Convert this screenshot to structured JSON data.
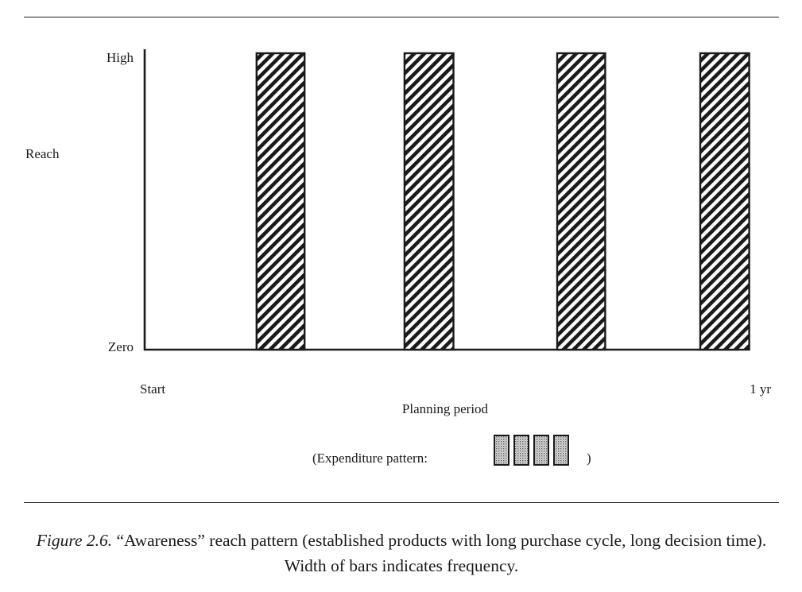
{
  "chart_data": {
    "type": "bar",
    "y_tick_labels": [
      "High",
      "Zero"
    ],
    "ylabel": "Reach",
    "x_tick_labels": [
      "Start",
      "1 yr"
    ],
    "xlabel": "Planning period",
    "x_range": [
      0,
      12
    ],
    "y_range": [
      0,
      1
    ],
    "bars": [
      {
        "x_start": 2.33,
        "x_end": 3.33,
        "value": 1.0
      },
      {
        "x_start": 5.41,
        "x_end": 6.43,
        "value": 1.0
      },
      {
        "x_start": 8.59,
        "x_end": 9.59,
        "value": 1.0
      },
      {
        "x_start": 11.57,
        "x_end": 12.59,
        "value": 1.0
      }
    ],
    "bar_pattern": "diagonal-hatch",
    "expenditure_pattern": {
      "label": "(Expenditure pattern:",
      "close": ")",
      "blocks": 4
    },
    "grid": false,
    "legend": "none"
  },
  "caption": {
    "figure_number": "Figure 2.6.",
    "text": " “Awareness” reach pattern (established products with long purchase cycle, long decision time).  Width of bars indicates frequency."
  },
  "colors": {
    "ink": "#1a1a1a",
    "paper": "#ffffff",
    "stipple": "#bdbdbd"
  }
}
